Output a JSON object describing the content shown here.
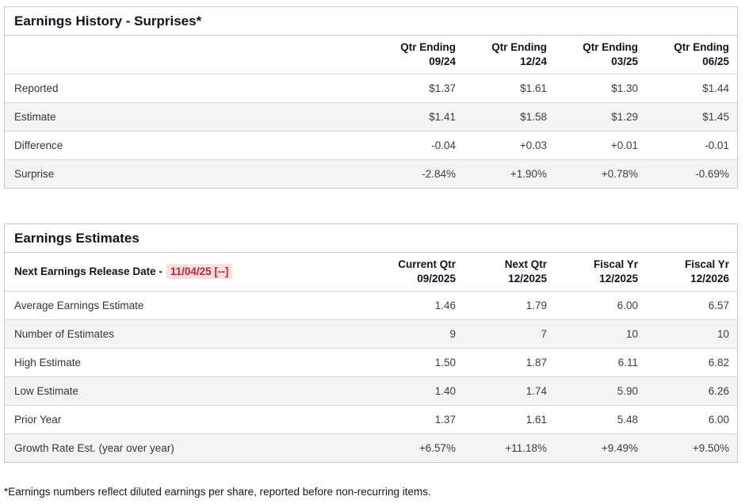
{
  "colors": {
    "negative": "#c9334a",
    "positive": "#1f9382",
    "release_date_text": "#c32639",
    "release_date_highlight": "#fbdede",
    "row_stripe": "#f4f4f4",
    "border": "#c9c9c9"
  },
  "history": {
    "title": "Earnings History - Surprises*",
    "columns": [
      {
        "line1": "Qtr Ending",
        "line2": "09/24"
      },
      {
        "line1": "Qtr Ending",
        "line2": "12/24"
      },
      {
        "line1": "Qtr Ending",
        "line2": "03/25"
      },
      {
        "line1": "Qtr Ending",
        "line2": "06/25"
      }
    ],
    "rows": [
      {
        "label": "Reported",
        "values": [
          {
            "text": "$1.37"
          },
          {
            "text": "$1.61"
          },
          {
            "text": "$1.30"
          },
          {
            "text": "$1.44"
          }
        ]
      },
      {
        "label": "Estimate",
        "values": [
          {
            "text": "$1.41"
          },
          {
            "text": "$1.58"
          },
          {
            "text": "$1.29"
          },
          {
            "text": "$1.45"
          }
        ]
      },
      {
        "label": "Difference",
        "values": [
          {
            "text": "-0.04",
            "tone": "neg"
          },
          {
            "text": "+0.03",
            "tone": "pos"
          },
          {
            "text": "+0.01",
            "tone": "pos"
          },
          {
            "text": "-0.01",
            "tone": "neg"
          }
        ]
      },
      {
        "label": "Surprise",
        "values": [
          {
            "text": "-2.84%",
            "tone": "neg"
          },
          {
            "text": "+1.90%",
            "tone": "pos"
          },
          {
            "text": "+0.78%",
            "tone": "pos"
          },
          {
            "text": "-0.69%",
            "tone": "neg"
          }
        ]
      }
    ]
  },
  "estimates": {
    "title": "Earnings Estimates",
    "release_label": "Next Earnings Release Date -",
    "release_date": "11/04/25 [--]",
    "columns": [
      {
        "line1": "Current Qtr",
        "line2": "09/2025"
      },
      {
        "line1": "Next Qtr",
        "line2": "12/2025"
      },
      {
        "line1": "Fiscal Yr",
        "line2": "12/2025"
      },
      {
        "line1": "Fiscal Yr",
        "line2": "12/2026"
      }
    ],
    "rows": [
      {
        "label": "Average Earnings Estimate",
        "values": [
          {
            "text": "1.46"
          },
          {
            "text": "1.79"
          },
          {
            "text": "6.00"
          },
          {
            "text": "6.57"
          }
        ]
      },
      {
        "label": "Number of Estimates",
        "values": [
          {
            "text": "9"
          },
          {
            "text": "7"
          },
          {
            "text": "10"
          },
          {
            "text": "10"
          }
        ]
      },
      {
        "label": "High Estimate",
        "values": [
          {
            "text": "1.50"
          },
          {
            "text": "1.87"
          },
          {
            "text": "6.11"
          },
          {
            "text": "6.82"
          }
        ]
      },
      {
        "label": "Low Estimate",
        "values": [
          {
            "text": "1.40"
          },
          {
            "text": "1.74"
          },
          {
            "text": "5.90"
          },
          {
            "text": "6.26"
          }
        ]
      },
      {
        "label": "Prior Year",
        "values": [
          {
            "text": "1.37"
          },
          {
            "text": "1.61"
          },
          {
            "text": "5.48"
          },
          {
            "text": "6.00"
          }
        ]
      },
      {
        "label": "Growth Rate Est. (year over year)",
        "values": [
          {
            "text": "+6.57%",
            "tone": "pos"
          },
          {
            "text": "+11.18%",
            "tone": "pos"
          },
          {
            "text": "+9.49%",
            "tone": "pos"
          },
          {
            "text": "+9.50%",
            "tone": "pos"
          }
        ]
      }
    ]
  },
  "footnote": "*Earnings numbers reflect diluted earnings per share, reported before non-recurring items."
}
